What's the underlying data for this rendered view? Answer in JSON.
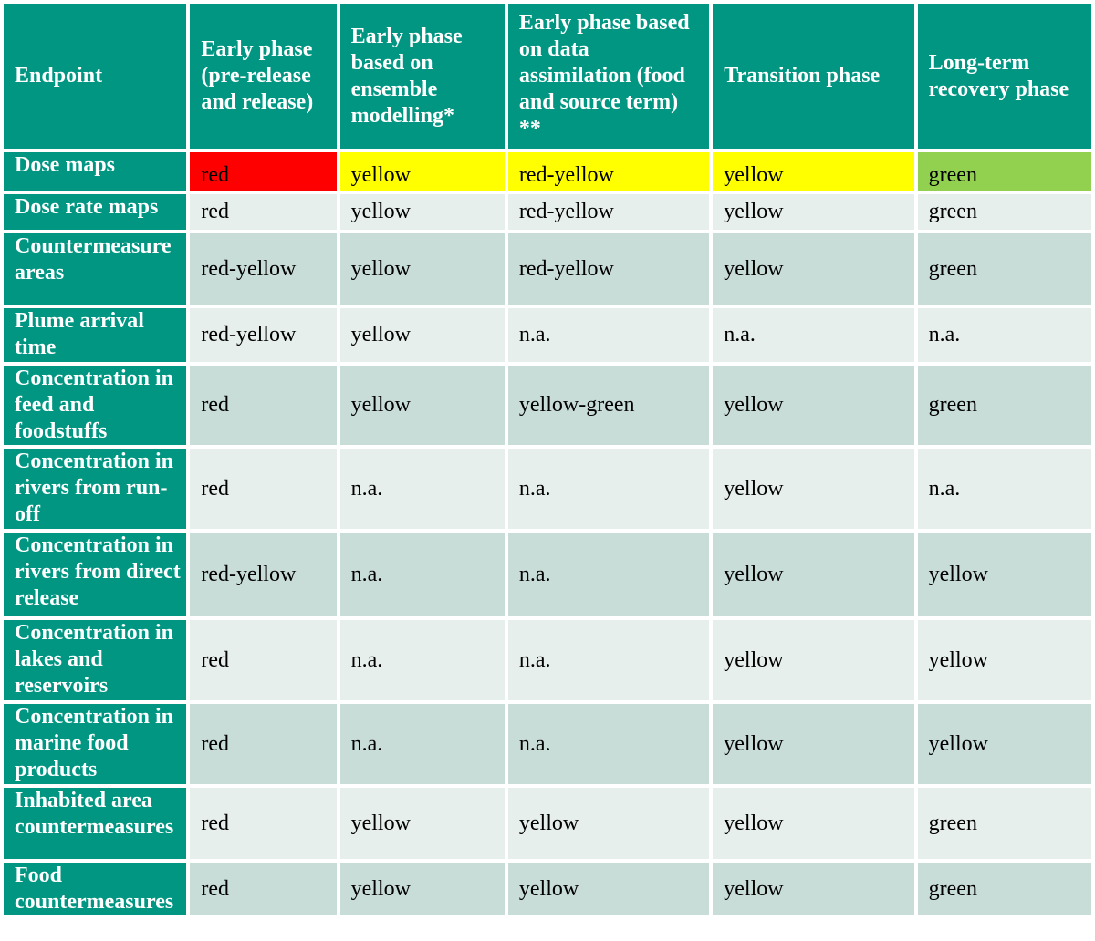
{
  "colors": {
    "header_bg": "#009682",
    "row_light": "#e6efec",
    "row_dark": "#c9ddd8",
    "red": "#ff0000",
    "yellow": "#ffff00",
    "green": "#92d050"
  },
  "headers": [
    "Endpoint",
    "Early phase (pre-release and release)",
    "Early phase based on ensemble modelling*",
    "Early phase based on data assimilation (food and source term) **",
    "Transition phase",
    "Long-term recovery phase"
  ],
  "rows": [
    {
      "endpoint": "Dose maps",
      "values": [
        "red",
        "yellow",
        "red-yellow",
        "yellow",
        "green"
      ]
    },
    {
      "endpoint": "Dose rate maps",
      "values": [
        "red",
        "yellow",
        "red-yellow",
        "yellow",
        "green"
      ]
    },
    {
      "endpoint": "Countermeasure areas",
      "values": [
        "red-yellow",
        "yellow",
        "red-yellow",
        "yellow",
        "green"
      ]
    },
    {
      "endpoint": "Plume arrival time",
      "values": [
        "red-yellow",
        "yellow",
        "n.a.",
        "n.a.",
        "n.a."
      ]
    },
    {
      "endpoint": "Concentration in feed and foodstuffs",
      "values": [
        "red",
        "yellow",
        "yellow-green",
        "yellow",
        "green"
      ]
    },
    {
      "endpoint": "Concentration in rivers from run-off",
      "values": [
        "red",
        "n.a.",
        "n.a.",
        "yellow",
        "n.a."
      ]
    },
    {
      "endpoint": "Concentration in rivers from direct release",
      "values": [
        "red-yellow",
        "n.a.",
        "n.a.",
        "yellow",
        "yellow"
      ]
    },
    {
      "endpoint": "Concentration in lakes and reservoirs",
      "values": [
        "red",
        "n.a.",
        "n.a.",
        "yellow",
        "yellow"
      ]
    },
    {
      "endpoint": "Concentration in marine food products",
      "values": [
        "red",
        "n.a.",
        "n.a.",
        "yellow",
        "yellow"
      ]
    },
    {
      "endpoint": "Inhabited area countermeasures",
      "values": [
        "red",
        "yellow",
        "yellow",
        "yellow",
        "green"
      ]
    },
    {
      "endpoint": "Food countermeasures",
      "values": [
        "red",
        "yellow",
        "yellow",
        "yellow",
        "green"
      ]
    }
  ]
}
